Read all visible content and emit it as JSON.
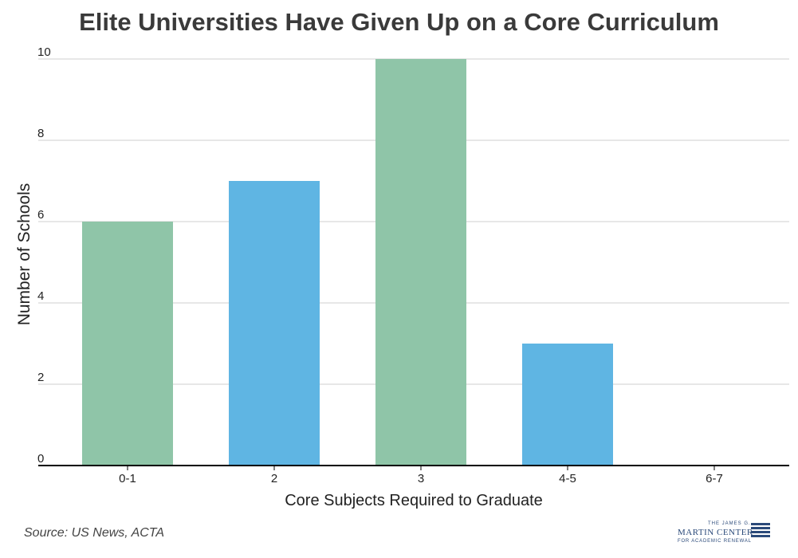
{
  "chart_data": {
    "type": "bar",
    "title": "Elite Universities Have Given Up on a Core Curriculum",
    "xlabel": "Core Subjects Required to Graduate",
    "ylabel": "Number of Schools",
    "categories": [
      "0-1",
      "2",
      "3",
      "4-5",
      "6-7"
    ],
    "values": [
      6,
      7,
      10,
      3,
      0
    ],
    "ylim": [
      0,
      10
    ],
    "yticks": [
      "0",
      "2",
      "4",
      "6",
      "8",
      "10"
    ],
    "grid": true,
    "colors": [
      "#8fc5a8",
      "#5fb5e3",
      "#8fc5a8",
      "#5fb5e3",
      "#8fc5a8"
    ]
  },
  "source": "Source: US News, ACTA",
  "logo": {
    "line1": "THE JAMES G.",
    "line2": "MARTIN CENTER",
    "line3": "FOR ACADEMIC RENEWAL"
  }
}
